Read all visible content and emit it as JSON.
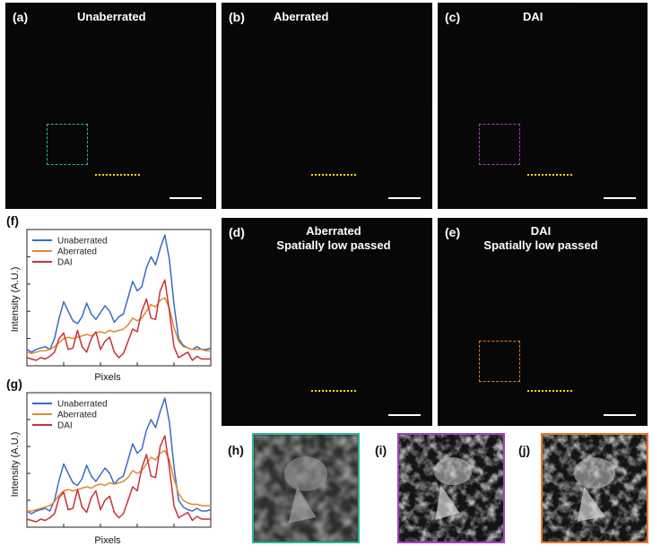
{
  "panels": {
    "a": {
      "label": "(a)",
      "title": "Unaberrated"
    },
    "b": {
      "label": "(b)",
      "title": "Aberrated"
    },
    "c": {
      "label": "(c)",
      "title": "DAI"
    },
    "d": {
      "label": "(d)",
      "title_line1": "Aberrated",
      "title_line2": "Spatially low passed"
    },
    "e": {
      "label": "(e)",
      "title_line1": "DAI",
      "title_line2": "Spatially low passed"
    }
  },
  "zooms": {
    "h": {
      "label": "(h)",
      "border_color": "#2bb596"
    },
    "i": {
      "label": "(i)",
      "border_color": "#a23fc0"
    },
    "j": {
      "label": "(j)",
      "border_color": "#e8762b"
    }
  },
  "roi_colors": {
    "a": "#2bb596",
    "c": "#a23fc0",
    "e": "#e8762b"
  },
  "line_profile_color": "#ffd700",
  "plots": {
    "f": {
      "label": "(f)",
      "xlabel": "Pixels",
      "ylabel": "Intensity (A.U.)"
    },
    "g": {
      "label": "(g)",
      "xlabel": "Pixels",
      "ylabel": "Intensity (A.U.)"
    }
  },
  "chart_data": [
    {
      "type": "line",
      "panel": "(f)",
      "xlabel": "Pixels",
      "ylabel": "Intensity (A.U.)",
      "legend_position": "top-left",
      "x": [
        0,
        1,
        2,
        3,
        4,
        5,
        6,
        7,
        8,
        9,
        10,
        11,
        12,
        13,
        14,
        15,
        16,
        17,
        18,
        19,
        20,
        21,
        22,
        23,
        24,
        25,
        26,
        27,
        28,
        29,
        30,
        31,
        32,
        33,
        34,
        35,
        36,
        37,
        38,
        39,
        40
      ],
      "ylim": [
        0,
        1
      ],
      "series": [
        {
          "name": "Unaberrated",
          "color": "#3a6bc4",
          "values": [
            0.12,
            0.1,
            0.12,
            0.13,
            0.14,
            0.12,
            0.2,
            0.35,
            0.47,
            0.4,
            0.33,
            0.31,
            0.36,
            0.46,
            0.38,
            0.34,
            0.39,
            0.44,
            0.4,
            0.32,
            0.36,
            0.38,
            0.5,
            0.62,
            0.55,
            0.58,
            0.72,
            0.8,
            0.74,
            0.86,
            0.96,
            0.78,
            0.45,
            0.2,
            0.15,
            0.13,
            0.12,
            0.14,
            0.12,
            0.12,
            0.13
          ]
        },
        {
          "name": "Aberrated",
          "color": "#e08a2e",
          "values": [
            0.1,
            0.09,
            0.1,
            0.11,
            0.11,
            0.12,
            0.14,
            0.17,
            0.2,
            0.21,
            0.2,
            0.21,
            0.22,
            0.23,
            0.22,
            0.24,
            0.25,
            0.24,
            0.26,
            0.25,
            0.26,
            0.27,
            0.3,
            0.35,
            0.33,
            0.35,
            0.4,
            0.45,
            0.43,
            0.48,
            0.5,
            0.42,
            0.28,
            0.18,
            0.14,
            0.13,
            0.12,
            0.12,
            0.12,
            0.11,
            0.11
          ]
        },
        {
          "name": "DAI",
          "color": "#c8313a",
          "values": [
            0.06,
            0.05,
            0.04,
            0.06,
            0.05,
            0.07,
            0.1,
            0.2,
            0.24,
            0.12,
            0.13,
            0.26,
            0.14,
            0.1,
            0.2,
            0.25,
            0.12,
            0.18,
            0.21,
            0.1,
            0.06,
            0.09,
            0.18,
            0.27,
            0.25,
            0.4,
            0.49,
            0.35,
            0.34,
            0.55,
            0.63,
            0.4,
            0.14,
            0.06,
            0.08,
            0.1,
            0.04,
            0.07,
            0.05,
            0.05,
            0.05
          ]
        }
      ]
    },
    {
      "type": "line",
      "panel": "(g)",
      "xlabel": "Pixels",
      "ylabel": "Intensity (A.U.)",
      "legend_position": "top-left",
      "x": [
        0,
        1,
        2,
        3,
        4,
        5,
        6,
        7,
        8,
        9,
        10,
        11,
        12,
        13,
        14,
        15,
        16,
        17,
        18,
        19,
        20,
        21,
        22,
        23,
        24,
        25,
        26,
        27,
        28,
        29,
        30,
        31,
        32,
        33,
        34,
        35,
        36,
        37,
        38,
        39,
        40
      ],
      "ylim": [
        0,
        1
      ],
      "series": [
        {
          "name": "Unaberrated",
          "color": "#3a6bc4",
          "values": [
            0.12,
            0.1,
            0.12,
            0.13,
            0.14,
            0.12,
            0.2,
            0.35,
            0.47,
            0.4,
            0.33,
            0.31,
            0.36,
            0.46,
            0.38,
            0.34,
            0.39,
            0.44,
            0.4,
            0.32,
            0.36,
            0.38,
            0.5,
            0.62,
            0.55,
            0.58,
            0.72,
            0.8,
            0.74,
            0.86,
            0.96,
            0.78,
            0.45,
            0.2,
            0.15,
            0.13,
            0.12,
            0.14,
            0.12,
            0.12,
            0.13
          ]
        },
        {
          "name": "Aberrated",
          "color": "#e08a2e",
          "values": [
            0.12,
            0.12,
            0.13,
            0.14,
            0.15,
            0.16,
            0.19,
            0.24,
            0.27,
            0.28,
            0.27,
            0.28,
            0.29,
            0.3,
            0.29,
            0.31,
            0.32,
            0.31,
            0.33,
            0.32,
            0.33,
            0.34,
            0.37,
            0.42,
            0.4,
            0.42,
            0.47,
            0.52,
            0.5,
            0.55,
            0.57,
            0.5,
            0.36,
            0.25,
            0.2,
            0.18,
            0.17,
            0.17,
            0.16,
            0.16,
            0.16
          ]
        },
        {
          "name": "DAI",
          "color": "#c8313a",
          "values": [
            0.06,
            0.05,
            0.04,
            0.06,
            0.05,
            0.07,
            0.1,
            0.22,
            0.26,
            0.13,
            0.14,
            0.28,
            0.15,
            0.11,
            0.22,
            0.27,
            0.13,
            0.2,
            0.23,
            0.11,
            0.07,
            0.1,
            0.2,
            0.3,
            0.27,
            0.44,
            0.54,
            0.38,
            0.37,
            0.6,
            0.68,
            0.44,
            0.16,
            0.07,
            0.09,
            0.11,
            0.05,
            0.08,
            0.06,
            0.06,
            0.06
          ]
        }
      ]
    }
  ]
}
